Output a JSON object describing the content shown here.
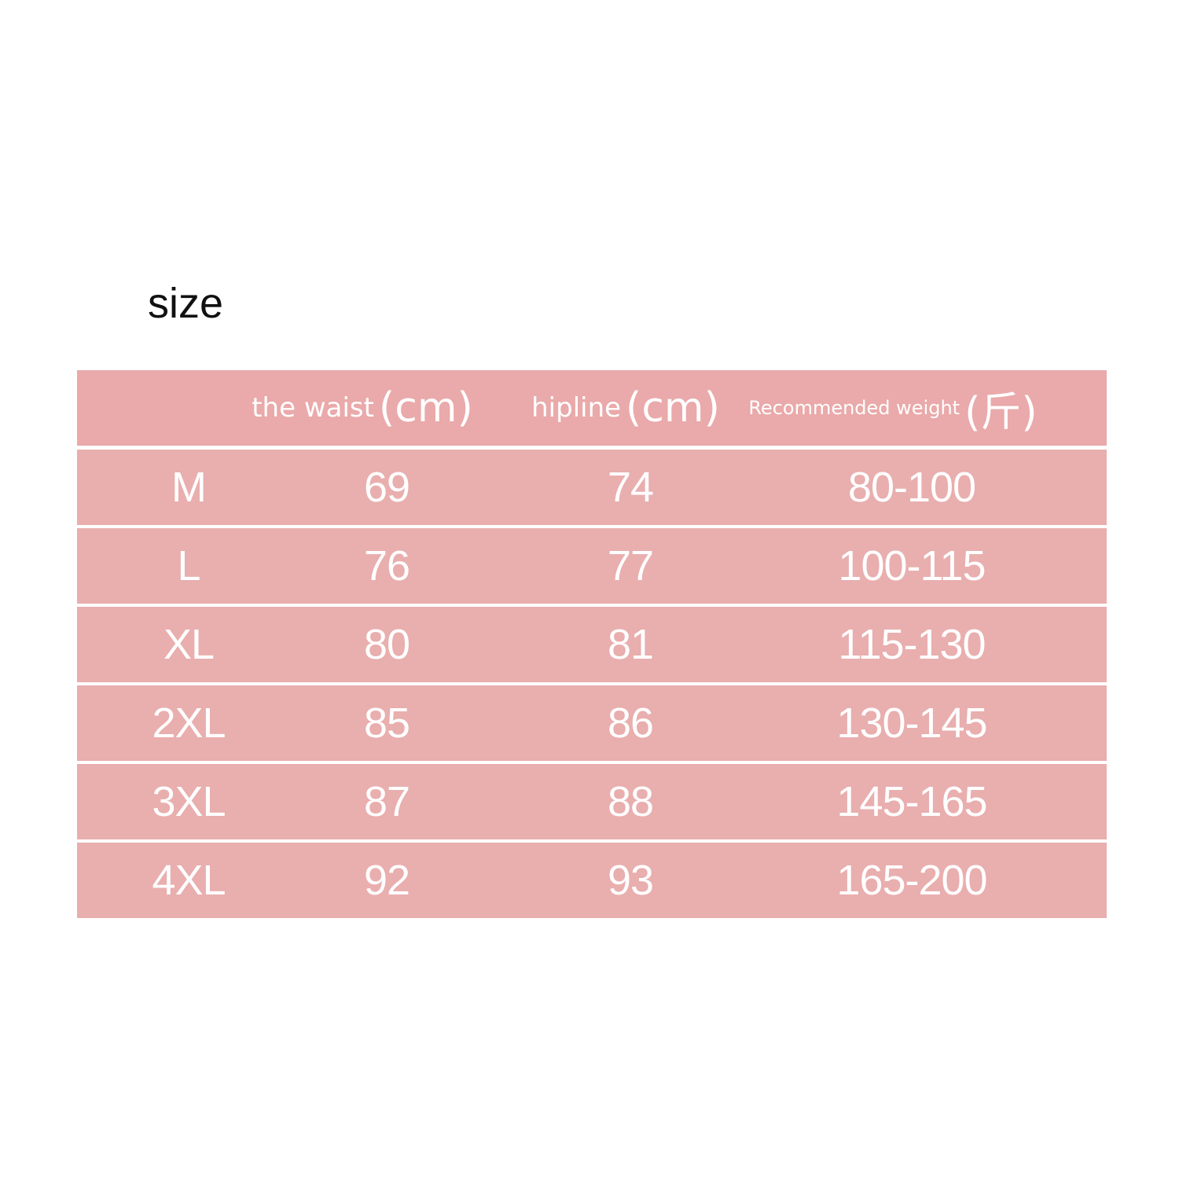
{
  "title": "size",
  "table": {
    "header": [
      {
        "label": "the waist",
        "unit": "(cm)"
      },
      {
        "label": "hipline",
        "unit": "(cm)"
      },
      {
        "label": "Recommended weight",
        "unit": "(斤)"
      }
    ],
    "rows": [
      [
        "M",
        69,
        74,
        "80-100"
      ],
      [
        "L",
        76,
        77,
        "100-115"
      ],
      [
        "XL",
        80,
        81,
        "115-130"
      ],
      [
        "2XL",
        85,
        86,
        "130-145"
      ],
      [
        "3XL",
        87,
        88,
        "145-165"
      ],
      [
        "4XL",
        92,
        93,
        "165-200"
      ]
    ]
  }
}
